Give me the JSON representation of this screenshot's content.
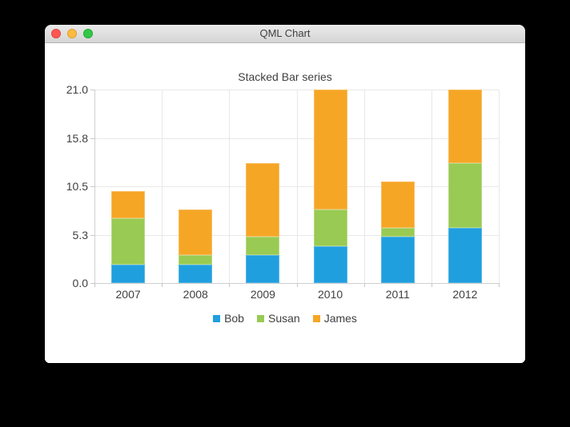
{
  "window": {
    "title": "QML Chart",
    "traffic_lights": {
      "close_color": "#fc5753",
      "minimize_color": "#fdbc40",
      "zoom_color": "#33c748"
    }
  },
  "chart_data": {
    "type": "bar",
    "stacked": true,
    "title": "Stacked Bar series",
    "categories": [
      "2007",
      "2008",
      "2009",
      "2010",
      "2011",
      "2012"
    ],
    "series": [
      {
        "name": "Bob",
        "color": "#209fdf",
        "border_color": "#53b5e6",
        "values": [
          2,
          2,
          3,
          4,
          5,
          6
        ]
      },
      {
        "name": "Susan",
        "color": "#99ca53",
        "border_color": "#b6d985",
        "values": [
          5,
          1,
          2,
          4,
          1,
          7
        ]
      },
      {
        "name": "James",
        "color": "#f6a625",
        "border_color": "#f8bd5f",
        "values": [
          3,
          5,
          8,
          13,
          5,
          8
        ]
      }
    ],
    "totals": [
      10,
      8,
      13,
      21,
      11,
      21
    ],
    "ylim": [
      0,
      21
    ],
    "yticks": [
      "0.0",
      "5.3",
      "10.5",
      "15.8",
      "21.0"
    ],
    "grid": true,
    "legend_position": "bottom",
    "grid_color": "#e8e8e8",
    "axis_color": "#d0d0d0",
    "text_color": "#404040"
  }
}
